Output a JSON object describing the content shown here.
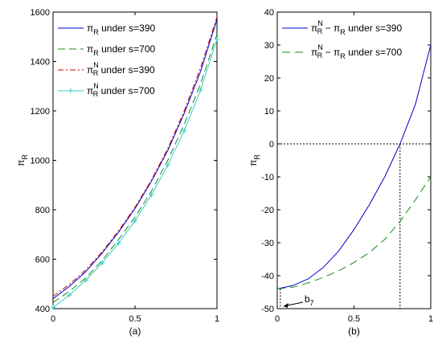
{
  "chart_data": [
    {
      "type": "line",
      "panel_label": "(a)",
      "ylabel_base": "π",
      "ylabel_sub": "R",
      "xlim": [
        0,
        1
      ],
      "ylim": [
        400,
        1600
      ],
      "x_ticks": [
        "0",
        "0.5",
        "1"
      ],
      "y_ticks": [
        "400",
        "600",
        "800",
        "1000",
        "1200",
        "1400",
        "1600"
      ],
      "legend_position": "top-left",
      "series": [
        {
          "base": "π",
          "sub": "R",
          "sup": "",
          "suffix": "under s=390",
          "color": "#0000cc",
          "dash": "",
          "marker": "",
          "x": [
            0,
            0.1,
            0.2,
            0.3,
            0.4,
            0.5,
            0.6,
            0.7,
            0.8,
            0.9,
            1.0
          ],
          "y": [
            440,
            490,
            550,
            625,
            710,
            805,
            915,
            1040,
            1190,
            1360,
            1570
          ]
        },
        {
          "base": "π",
          "sub": "R",
          "sup": "",
          "suffix": "under s=700",
          "color": "#1a8a1a",
          "dash": "9,5",
          "marker": "",
          "x": [
            0,
            0.1,
            0.2,
            0.3,
            0.4,
            0.5,
            0.6,
            0.7,
            0.8,
            0.9,
            1.0
          ],
          "y": [
            425,
            470,
            525,
            595,
            680,
            770,
            875,
            1000,
            1145,
            1310,
            1510
          ]
        },
        {
          "base": "π",
          "sub": "R",
          "sup": "N",
          "suffix": "under s=390",
          "color": "#cc0000",
          "dash": "7,3,2,3",
          "marker": "",
          "x": [
            0,
            0.1,
            0.2,
            0.3,
            0.4,
            0.5,
            0.6,
            0.7,
            0.8,
            0.9,
            1.0
          ],
          "y": [
            450,
            498,
            557,
            630,
            715,
            810,
            920,
            1048,
            1200,
            1375,
            1580
          ]
        },
        {
          "base": "π",
          "sub": "R",
          "sup": "N",
          "suffix": "under s=700",
          "color": "#33cccc",
          "dash": "",
          "marker": "+",
          "x": [
            0,
            0.1,
            0.2,
            0.3,
            0.4,
            0.5,
            0.6,
            0.7,
            0.8,
            0.9,
            1.0
          ],
          "y": [
            405,
            455,
            515,
            585,
            665,
            755,
            860,
            980,
            1120,
            1285,
            1490
          ]
        }
      ]
    },
    {
      "type": "line",
      "panel_label": "(b)",
      "ylabel_base": "π",
      "ylabel_sub": "R",
      "xlim": [
        0,
        1
      ],
      "ylim": [
        -50,
        40
      ],
      "x_ticks": [
        "0",
        "0.5",
        "1"
      ],
      "y_ticks": [
        "-50",
        "-40",
        "-30",
        "-20",
        "-10",
        "0",
        "10",
        "20",
        "30",
        "40"
      ],
      "legend_position": "top-left",
      "annotation": "b",
      "annotation_sub": "7",
      "series": [
        {
          "base": "π",
          "sub": "R",
          "sup": "N",
          "suffix": "− π",
          "suffix_sub": "R",
          "tail": "under s=390",
          "color": "#0000cc",
          "dash": "",
          "x": [
            0,
            0.1,
            0.2,
            0.3,
            0.4,
            0.5,
            0.6,
            0.7,
            0.8,
            0.9,
            1.0
          ],
          "y": [
            -44,
            -43,
            -41,
            -37.5,
            -32.5,
            -26,
            -18.5,
            -10,
            0,
            12,
            30
          ]
        },
        {
          "base": "π",
          "sub": "R",
          "sup": "N",
          "suffix": "− π",
          "suffix_sub": "R",
          "tail": "under s=700",
          "color": "#1a8a1a",
          "dash": "10,6",
          "x": [
            0,
            0.1,
            0.2,
            0.3,
            0.4,
            0.5,
            0.6,
            0.7,
            0.8,
            0.9,
            1.0
          ],
          "y": [
            -44,
            -43.5,
            -42.2,
            -40.5,
            -38.5,
            -36,
            -33,
            -29,
            -23.5,
            -17,
            -10
          ]
        }
      ],
      "reference": {
        "zero_line_y": 0,
        "crossing_x": 0.8,
        "b7_x": 0.02
      }
    }
  ]
}
